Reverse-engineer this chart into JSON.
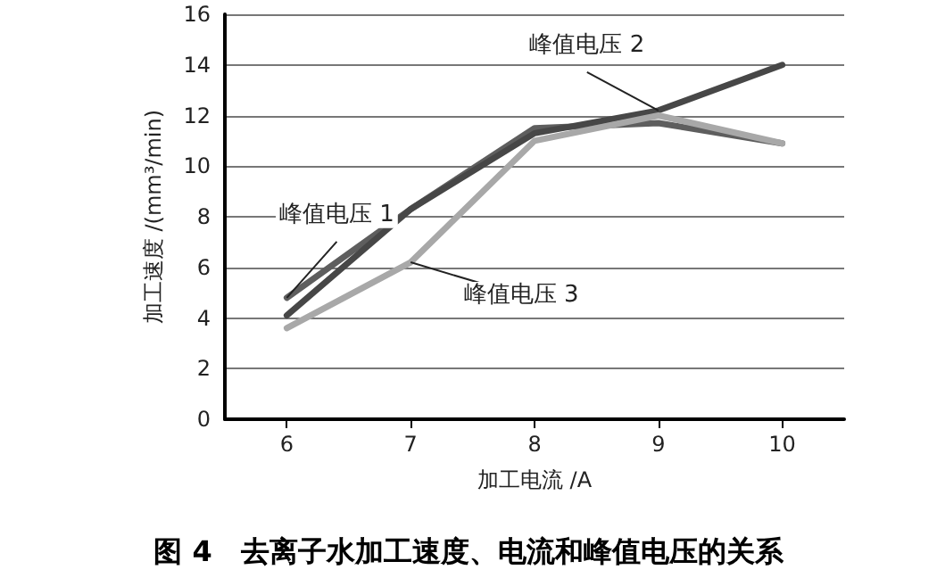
{
  "chart_data": {
    "type": "line",
    "title": "图 4　去离子水加工速度、电流和峰值电压的关系",
    "xlabel": "加工电流 /A",
    "ylabel": "加工速度 /(mm³/min)",
    "categories": [
      "6",
      "7",
      "8",
      "9",
      "10"
    ],
    "series": [
      {
        "name": "峰值电压 1",
        "color": "#5e5e5e",
        "values": [
          4.8,
          8.3,
          11.5,
          11.7,
          10.9
        ]
      },
      {
        "name": "峰值电压 2",
        "color": "#474747",
        "values": [
          4.1,
          8.3,
          11.3,
          12.2,
          14.0
        ]
      },
      {
        "name": "峰值电压 3",
        "color": "#a8a8a8",
        "values": [
          3.6,
          6.2,
          11.0,
          12.0,
          10.9
        ]
      }
    ],
    "ylim": [
      0,
      16
    ],
    "yticks": [
      0,
      2,
      4,
      6,
      8,
      10,
      12,
      14,
      16
    ],
    "grid": "y",
    "legend": false,
    "marker": "none",
    "line_style": "solid"
  }
}
